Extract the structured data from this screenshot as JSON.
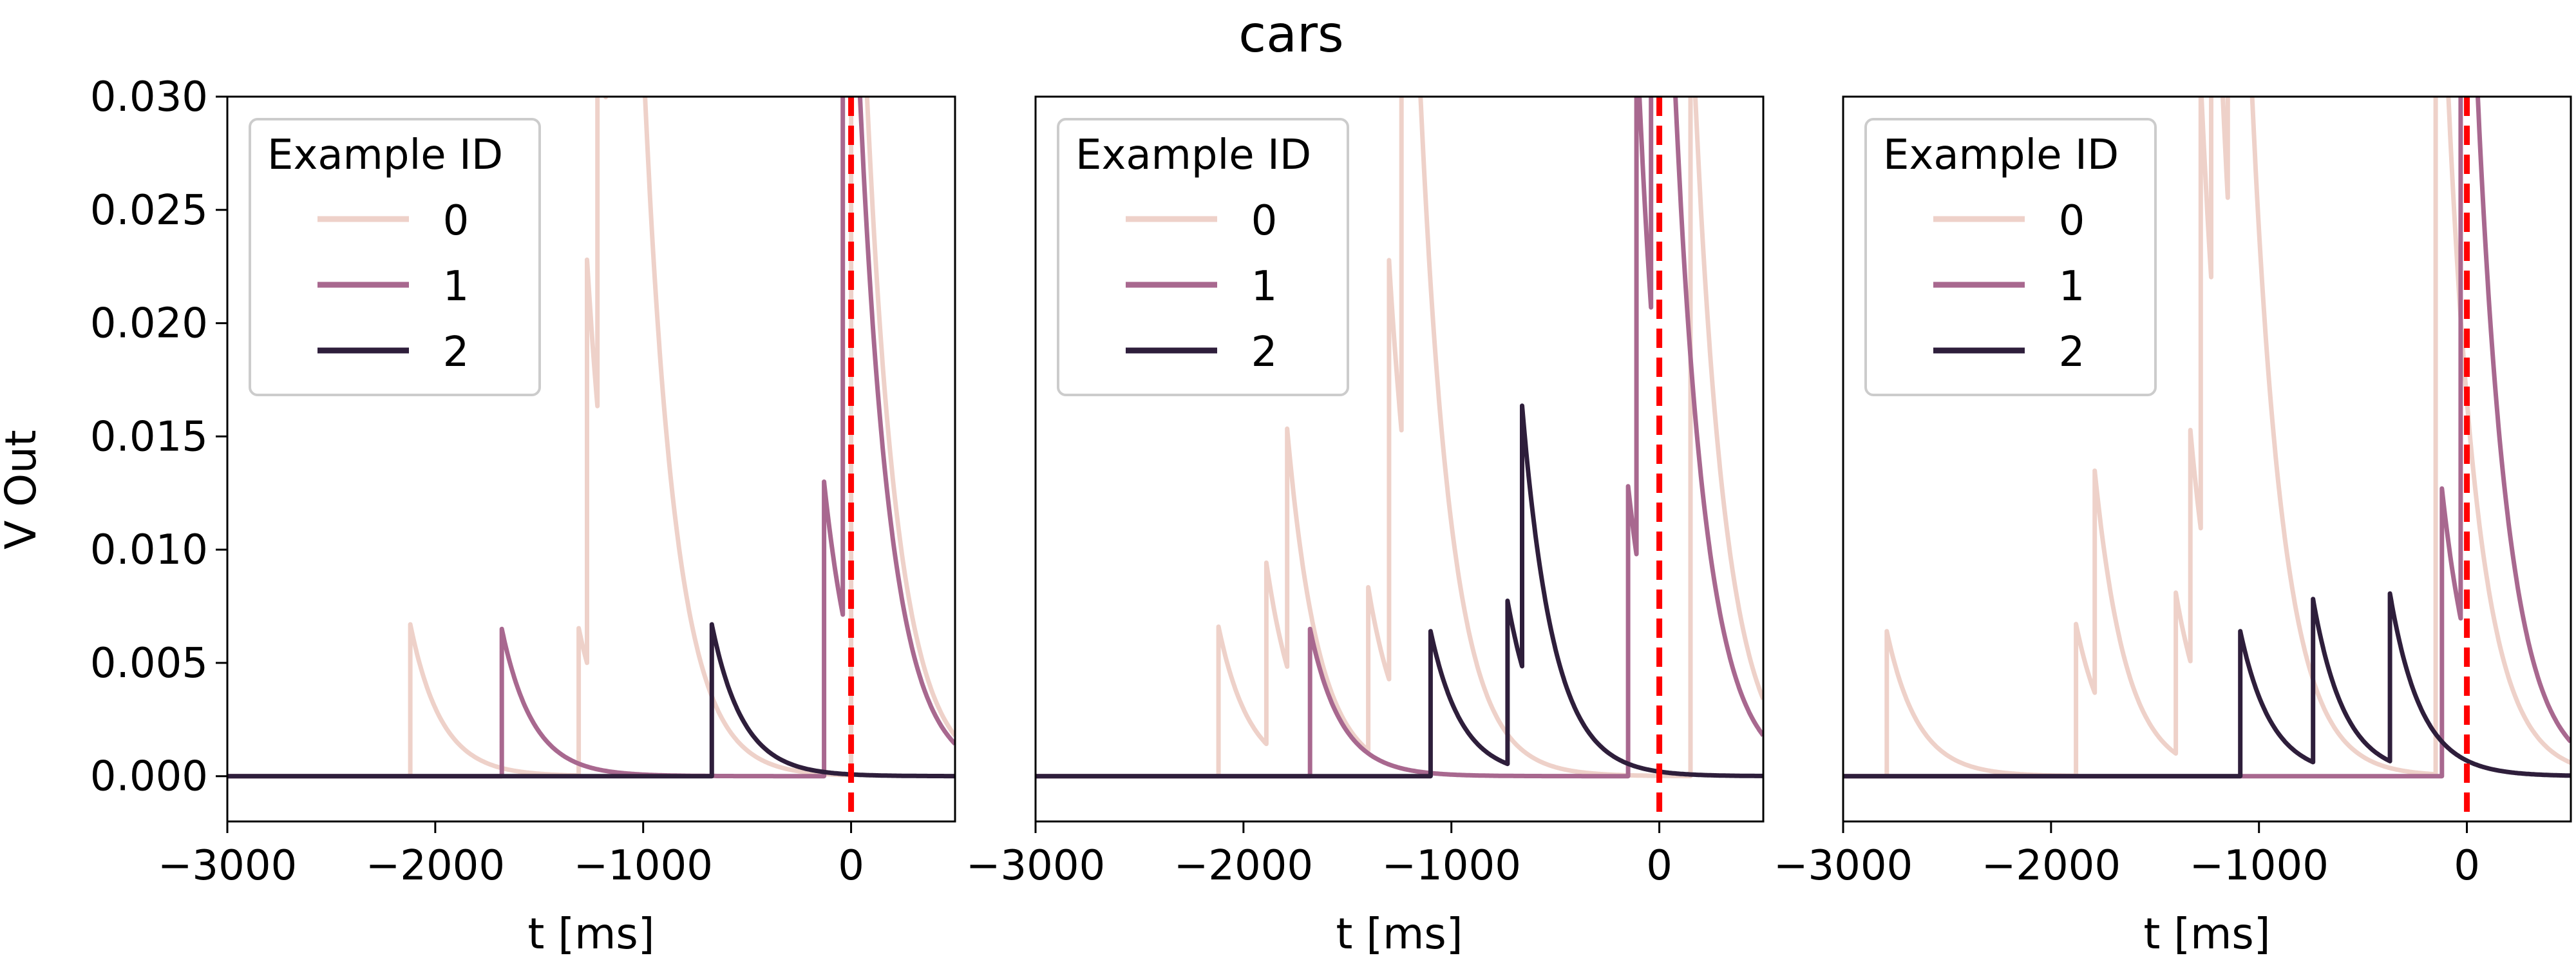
{
  "chart_data": {
    "type": "line",
    "title": "cars",
    "ylabel": "V Out",
    "xlim": [
      -3000,
      500
    ],
    "ylim": [
      -0.002,
      0.03
    ],
    "xticks": [
      -3000,
      -2000,
      -1000,
      0
    ],
    "xtick_labels": [
      "−3000",
      "−2000",
      "−1000",
      "0"
    ],
    "yticks": [
      0.0,
      0.005,
      0.01,
      0.015,
      0.02,
      0.025,
      0.03
    ],
    "ytick_labels": [
      "0.000",
      "0.005",
      "0.010",
      "0.015",
      "0.020",
      "0.025",
      "0.030"
    ],
    "legend": {
      "title": "Example ID",
      "position": "upper-left"
    },
    "series_styles": [
      {
        "label": "0",
        "color": "#eed1c9"
      },
      {
        "label": "1",
        "color": "#a8688f"
      },
      {
        "label": "2",
        "color": "#2e1e3b"
      }
    ],
    "event_line": {
      "x": 0,
      "color": "#ff0000",
      "style": "dashed"
    },
    "panels": [
      {
        "xlabel": "t [ms]",
        "series": [
          {
            "label": "0",
            "spikes": [
              {
                "t": -2120,
                "v": 0.0067
              },
              {
                "t": -1310,
                "v": 0.0065
              },
              {
                "t": -1270,
                "v": 0.0178
              },
              {
                "t": -1220,
                "v": 0.0228
              },
              {
                "t": -1180,
                "v": 0.0288
              },
              {
                "t": -1140,
                "v": 0.036
              },
              {
                "t": 0,
                "v": 0.05
              }
            ]
          },
          {
            "label": "1",
            "spikes": [
              {
                "t": -1680,
                "v": 0.0065
              },
              {
                "t": -130,
                "v": 0.013
              },
              {
                "t": -40,
                "v": 0.045
              }
            ]
          },
          {
            "label": "2",
            "spikes": [
              {
                "t": -670,
                "v": 0.0067
              }
            ]
          }
        ]
      },
      {
        "xlabel": "t [ms]",
        "series": [
          {
            "label": "0",
            "spikes": [
              {
                "t": -2120,
                "v": 0.0066
              },
              {
                "t": -1890,
                "v": 0.008
              },
              {
                "t": -1790,
                "v": 0.0105
              },
              {
                "t": -1400,
                "v": 0.0072
              },
              {
                "t": -1300,
                "v": 0.0185
              },
              {
                "t": -1240,
                "v": 0.04
              },
              {
                "t": 150,
                "v": 0.035
              }
            ]
          },
          {
            "label": "1",
            "spikes": [
              {
                "t": -1680,
                "v": 0.0065
              },
              {
                "t": -150,
                "v": 0.0128
              },
              {
                "t": -110,
                "v": 0.0232
              },
              {
                "t": -40,
                "v": 0.045
              }
            ]
          },
          {
            "label": "2",
            "spikes": [
              {
                "t": -1100,
                "v": 0.0064
              },
              {
                "t": -730,
                "v": 0.0072
              },
              {
                "t": -660,
                "v": 0.0115
              }
            ]
          }
        ]
      },
      {
        "xlabel": "t [ms]",
        "series": [
          {
            "label": "0",
            "spikes": [
              {
                "t": -2790,
                "v": 0.0064
              },
              {
                "t": -1880,
                "v": 0.0067
              },
              {
                "t": -1790,
                "v": 0.0098
              },
              {
                "t": -1400,
                "v": 0.0071
              },
              {
                "t": -1330,
                "v": 0.0102
              },
              {
                "t": -1280,
                "v": 0.0198
              },
              {
                "t": -1230,
                "v": 0.0215
              },
              {
                "t": -1150,
                "v": 0.04
              },
              {
                "t": -150,
                "v": 0.045
              }
            ]
          },
          {
            "label": "1",
            "spikes": [
              {
                "t": -120,
                "v": 0.0127
              },
              {
                "t": -30,
                "v": 0.045
              }
            ]
          },
          {
            "label": "2",
            "spikes": [
              {
                "t": -1090,
                "v": 0.0064
              },
              {
                "t": -740,
                "v": 0.0072
              },
              {
                "t": -370,
                "v": 0.0074
              }
            ]
          }
        ]
      }
    ]
  }
}
